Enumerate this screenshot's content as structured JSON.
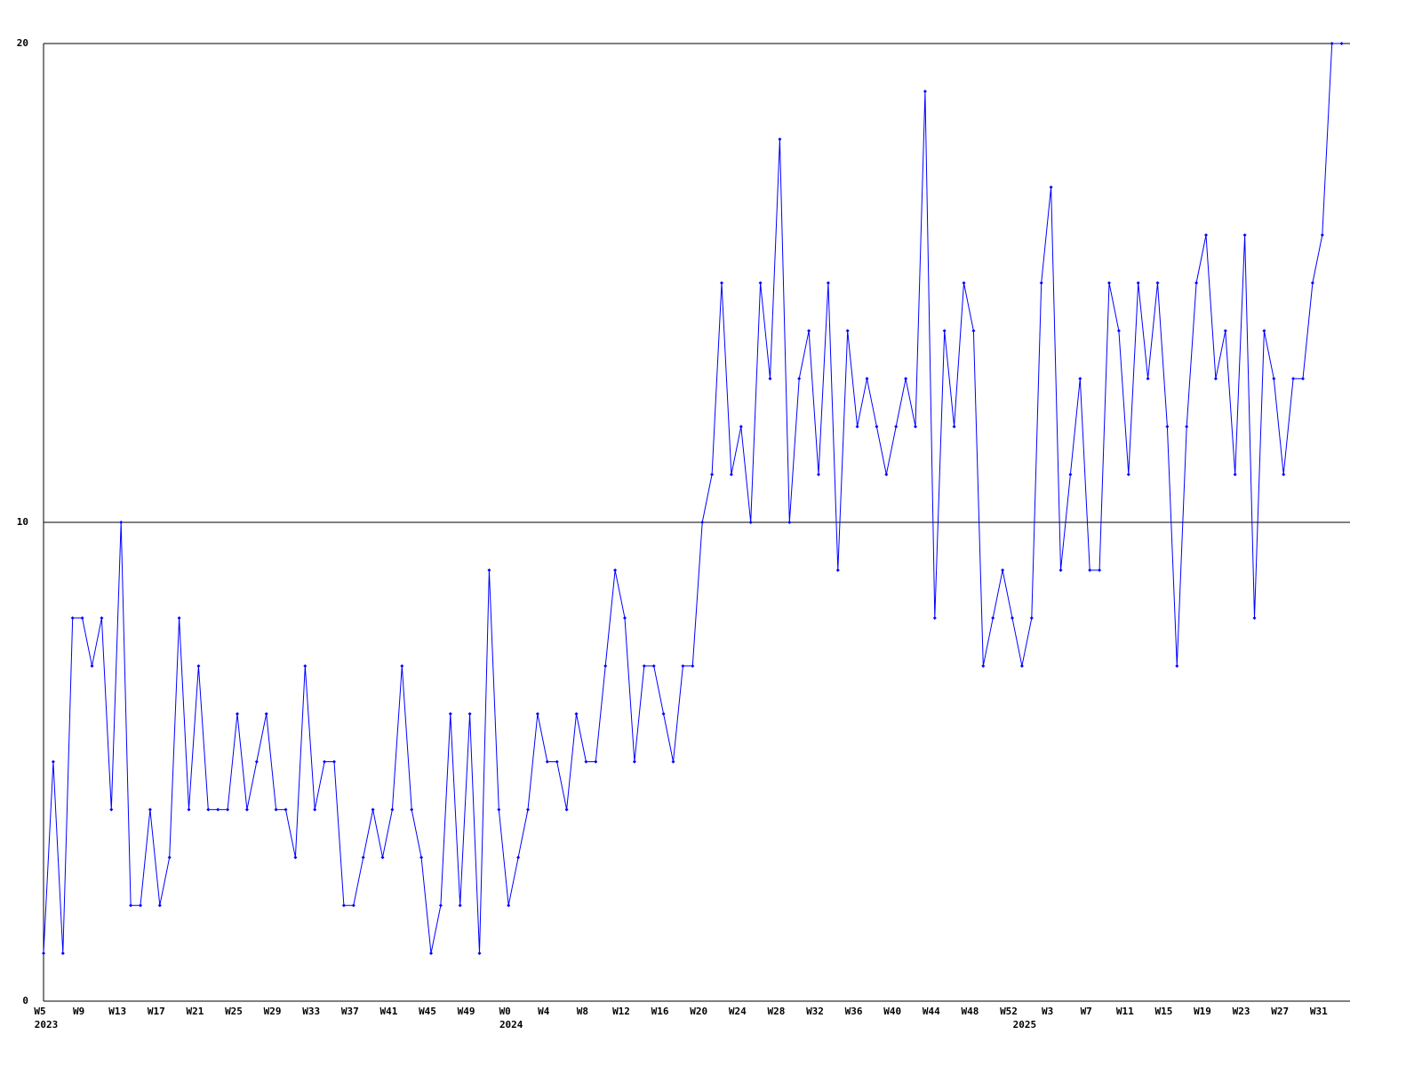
{
  "chart_data": {
    "type": "line",
    "categories": [
      "W5",
      null,
      null,
      null,
      "W9",
      null,
      null,
      null,
      "W13",
      null,
      null,
      null,
      "W17",
      null,
      null,
      null,
      "W21",
      null,
      null,
      null,
      "W25",
      null,
      null,
      null,
      "W29",
      null,
      null,
      null,
      "W33",
      null,
      null,
      null,
      "W37",
      null,
      null,
      null,
      "W41",
      null,
      null,
      null,
      "W45",
      null,
      null,
      null,
      "W49",
      null,
      null,
      null,
      "W0",
      null,
      null,
      null,
      "W4",
      null,
      null,
      null,
      "W8",
      null,
      null,
      null,
      "W12",
      null,
      null,
      null,
      "W16",
      null,
      null,
      null,
      "W20",
      null,
      null,
      null,
      "W24",
      null,
      null,
      null,
      "W28",
      null,
      null,
      null,
      "W32",
      null,
      null,
      null,
      "W36",
      null,
      null,
      null,
      "W40",
      null,
      null,
      null,
      "W44",
      null,
      null,
      null,
      "W48",
      null,
      null,
      null,
      "W52",
      null,
      null,
      null,
      "W3",
      null,
      null,
      null,
      "W7",
      null,
      null,
      null,
      "W11",
      null,
      null,
      null,
      "W15",
      null,
      null,
      null,
      "W19",
      null,
      null,
      null,
      "W23",
      null,
      null,
      null,
      "W27",
      null,
      null,
      null,
      "W31",
      null,
      null
    ],
    "years": [
      "2023",
      null,
      null,
      null,
      null,
      null,
      null,
      null,
      null,
      null,
      null,
      null,
      null,
      null,
      null,
      null,
      null,
      null,
      null,
      null,
      null,
      null,
      null,
      null,
      null,
      null,
      null,
      null,
      null,
      null,
      null,
      null,
      null,
      null,
      null,
      null,
      null,
      null,
      null,
      null,
      null,
      null,
      null,
      null,
      null,
      null,
      null,
      null,
      "2024",
      null,
      null,
      null,
      null,
      null,
      null,
      null,
      null,
      null,
      null,
      null,
      null,
      null,
      null,
      null,
      null,
      null,
      null,
      null,
      null,
      null,
      null,
      null,
      null,
      null,
      null,
      null,
      null,
      null,
      null,
      null,
      null,
      null,
      null,
      null,
      null,
      null,
      null,
      null,
      null,
      null,
      null,
      null,
      null,
      null,
      null,
      null,
      null,
      null,
      null,
      null,
      null,
      "2025",
      null,
      null,
      null,
      null,
      null,
      null,
      null,
      null,
      null,
      null,
      null,
      null,
      null,
      null,
      null,
      null,
      null,
      null,
      null,
      null,
      null,
      null,
      null,
      null,
      null,
      null,
      null,
      null,
      null,
      null,
      null,
      null,
      null
    ],
    "series": [
      {
        "color": "#0000ff",
        "values": [
          1,
          5,
          1,
          8,
          8,
          7,
          8,
          4,
          10,
          2,
          2,
          4,
          2,
          3,
          8,
          4,
          7,
          4,
          4,
          4,
          6,
          4,
          5,
          6,
          4,
          4,
          3,
          7,
          4,
          5,
          5,
          2,
          2,
          3,
          4,
          3,
          4,
          7,
          4,
          3,
          1,
          2,
          6,
          2,
          6,
          1,
          9,
          4,
          2,
          3,
          4,
          6,
          5,
          5,
          4,
          6,
          5,
          5,
          7,
          9,
          8,
          5,
          7,
          7,
          6,
          5,
          7,
          7,
          10,
          11,
          15,
          11,
          12,
          10,
          15,
          13,
          18,
          10,
          13,
          14,
          11,
          15,
          9,
          14,
          12,
          13,
          12,
          11,
          12,
          13,
          12,
          19,
          8,
          14,
          12,
          15,
          14,
          7,
          8,
          9,
          8,
          7,
          8,
          15,
          17,
          9,
          11,
          13,
          9,
          9,
          15,
          14,
          11,
          15,
          13,
          15,
          12,
          7,
          12,
          15,
          16,
          13,
          14,
          11,
          16,
          8,
          14,
          13,
          11,
          13,
          13,
          15,
          16,
          20,
          20
        ]
      }
    ],
    "ylim": [
      0,
      20
    ],
    "yticks": [
      0,
      10,
      20
    ],
    "grid": true
  }
}
